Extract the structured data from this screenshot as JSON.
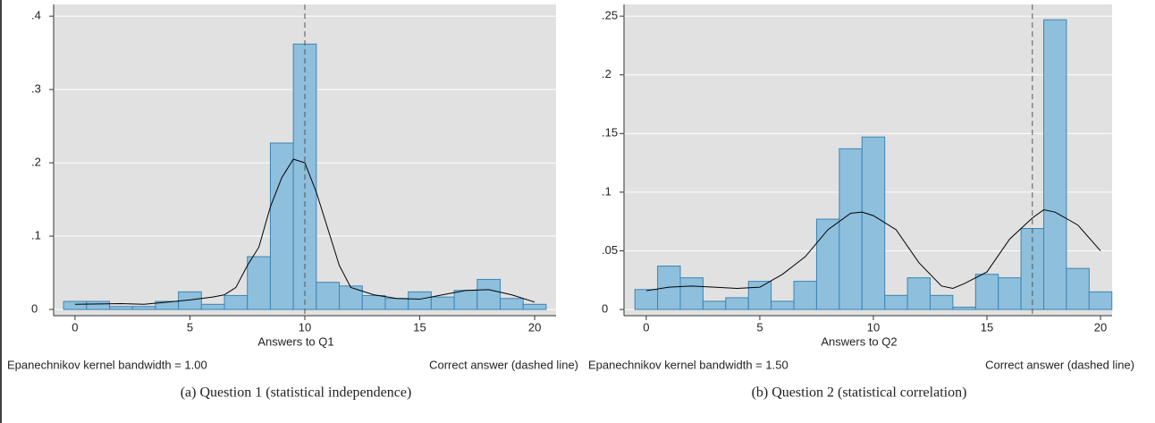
{
  "chart_data": [
    {
      "type": "histogram",
      "bins": [
        -0.5,
        0.5,
        1.5,
        2.5,
        3.5,
        4.5,
        5.5,
        6.5,
        7.5,
        8.5,
        9.5,
        10.5,
        11.5,
        12.5,
        13.5,
        14.5,
        15.5,
        16.5,
        17.5,
        18.5,
        19.5,
        20.5
      ],
      "values": [
        0.011,
        0.011,
        0.004,
        0.004,
        0.011,
        0.024,
        0.007,
        0.019,
        0.072,
        0.227,
        0.362,
        0.037,
        0.032,
        0.019,
        0.015,
        0.024,
        0.017,
        0.026,
        0.041,
        0.015,
        0.007
      ],
      "color": "#8ebfdc",
      "density": {
        "x": [
          0,
          2,
          3,
          4,
          5,
          6,
          6.5,
          7,
          7.5,
          8,
          8.5,
          9,
          9.5,
          10,
          10.5,
          11,
          11.5,
          12,
          13,
          14,
          15,
          16,
          17,
          18,
          19,
          20
        ],
        "values": [
          0.007,
          0.008,
          0.007,
          0.01,
          0.013,
          0.017,
          0.02,
          0.03,
          0.06,
          0.085,
          0.14,
          0.18,
          0.205,
          0.2,
          0.16,
          0.11,
          0.06,
          0.03,
          0.02,
          0.015,
          0.014,
          0.02,
          0.026,
          0.027,
          0.02,
          0.01
        ],
        "color": "#000000"
      },
      "reference_line": 10,
      "xlabel": "Answers to Q1",
      "note_left": "Epanechnikov kernel bandwidth = 1.00",
      "note_right": "Correct answer (dashed line)",
      "caption": "(a)  Question 1 (statistical independence)",
      "xlim": [
        -0.93,
        20.93
      ],
      "xticks": [
        0,
        5,
        10,
        15,
        20
      ],
      "ylim": [
        -0.0085,
        0.416
      ],
      "yticks": [
        0,
        {
          "value": 0.1,
          "label": ".1"
        },
        {
          "value": 0.2,
          "label": ".2"
        },
        {
          "value": 0.3,
          "label": ".3"
        },
        {
          "value": 0.4,
          "label": ".4"
        }
      ],
      "grid": true
    },
    {
      "type": "histogram",
      "bins": [
        -0.5,
        0.5,
        1.5,
        2.5,
        3.5,
        4.5,
        5.5,
        6.5,
        7.5,
        8.5,
        9.5,
        10.5,
        11.5,
        12.5,
        13.5,
        14.5,
        15.5,
        16.5,
        17.5,
        18.5,
        19.5,
        20.5
      ],
      "values": [
        0.017,
        0.037,
        0.027,
        0.007,
        0.01,
        0.024,
        0.007,
        0.024,
        0.077,
        0.137,
        0.147,
        0.012,
        0.027,
        0.012,
        0.002,
        0.03,
        0.027,
        0.069,
        0.247,
        0.035,
        0.015
      ],
      "color": "#8ebfdc",
      "density": {
        "x": [
          0,
          1,
          2,
          3,
          4,
          5,
          6,
          7,
          8,
          9,
          9.5,
          10,
          11,
          12,
          13,
          13.5,
          14,
          15,
          16,
          17,
          17.5,
          18,
          19,
          20
        ],
        "values": [
          0.016,
          0.019,
          0.02,
          0.019,
          0.018,
          0.019,
          0.03,
          0.045,
          0.068,
          0.082,
          0.083,
          0.08,
          0.068,
          0.04,
          0.02,
          0.018,
          0.022,
          0.032,
          0.06,
          0.078,
          0.085,
          0.083,
          0.072,
          0.05
        ],
        "color": "#000000"
      },
      "reference_line": 17,
      "xlabel": "Answers to Q2",
      "note_left": "Epanechnikov kernel bandwidth = 1.50",
      "note_right": "Correct answer (dashed line)",
      "caption": "(b)  Question 2 (statistical correlation)",
      "xlim": [
        -0.98,
        20.51
      ],
      "xticks": [
        0,
        5,
        10,
        15,
        20
      ],
      "ylim": [
        -0.0053,
        0.26
      ],
      "yticks": [
        0,
        {
          "value": 0.05,
          "label": ".05"
        },
        {
          "value": 0.1,
          "label": ".1"
        },
        {
          "value": 0.15,
          "label": ".15"
        },
        {
          "value": 0.2,
          "label": ".2"
        },
        {
          "value": 0.25,
          "label": ".25"
        }
      ],
      "grid": true
    }
  ]
}
